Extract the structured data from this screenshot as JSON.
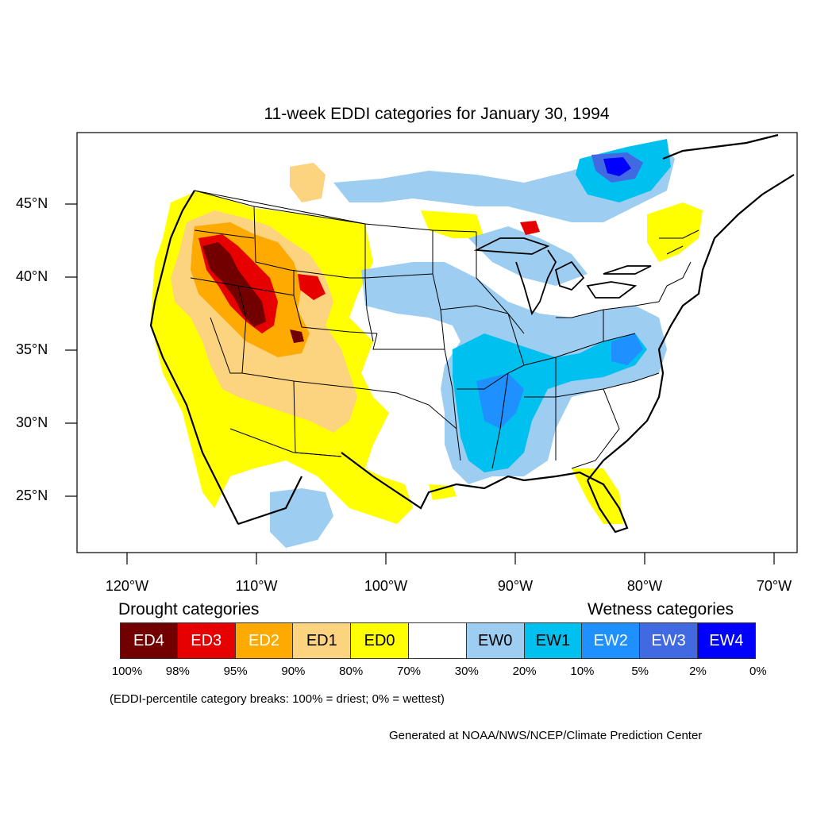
{
  "title": "11-week EDDI categories for January 30, 1994",
  "latitude_labels": [
    "45°N",
    "40°N",
    "35°N",
    "30°N",
    "25°N"
  ],
  "longitude_labels": [
    "120°W",
    "110°W",
    "100°W",
    "90°W",
    "80°W",
    "70°W"
  ],
  "legend": {
    "drought_heading": "Drought categories",
    "wetness_heading": "Wetness categories",
    "categories": [
      {
        "label": "ED4",
        "color": "#730000",
        "text_color": "#ffffff"
      },
      {
        "label": "ED3",
        "color": "#e60000",
        "text_color": "#ffffff"
      },
      {
        "label": "ED2",
        "color": "#ffaa00",
        "text_color": "#ffffff"
      },
      {
        "label": "ED1",
        "color": "#fcd37f",
        "text_color": "#000000"
      },
      {
        "label": "ED0",
        "color": "#ffff00",
        "text_color": "#000000"
      },
      {
        "label": "",
        "color": "#ffffff",
        "text_color": "#000000"
      },
      {
        "label": "EW0",
        "color": "#9dcdf0",
        "text_color": "#000000"
      },
      {
        "label": "EW1",
        "color": "#00c0f0",
        "text_color": "#000000"
      },
      {
        "label": "EW2",
        "color": "#1e90ff",
        "text_color": "#ffffff"
      },
      {
        "label": "EW3",
        "color": "#4169e1",
        "text_color": "#ffffff"
      },
      {
        "label": "EW4",
        "color": "#0000ff",
        "text_color": "#ffffff"
      }
    ],
    "breaks": [
      "100%",
      "98%",
      "95%",
      "90%",
      "80%",
      "70%",
      "30%",
      "20%",
      "10%",
      "5%",
      "2%",
      "0%"
    ]
  },
  "note": "(EDDI-percentile category breaks: 100% = driest; 0% = wettest)",
  "credit": "Generated at NOAA/NWS/NCEP/Climate Prediction Center"
}
